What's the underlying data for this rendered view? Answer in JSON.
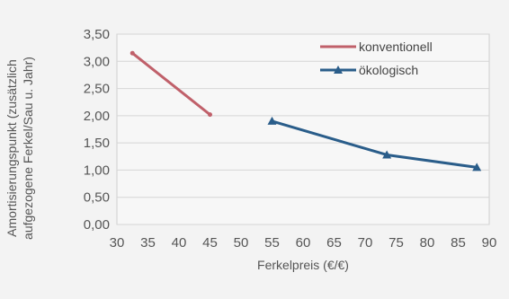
{
  "chart_data": {
    "type": "line",
    "xlabel": "Ferkelpreis (€/€)",
    "ylabel_line1": "Amortisierungspunkt (zusätzlich",
    "ylabel_line2": "aufgezogene Ferkel/Sau u. Jahr)",
    "xlim": [
      30,
      90
    ],
    "ylim": [
      0,
      3.5
    ],
    "x_ticks": [
      "30",
      "35",
      "40",
      "45",
      "50",
      "55",
      "60",
      "65",
      "70",
      "75",
      "80",
      "85",
      "90"
    ],
    "y_ticks": [
      "0,00",
      "0,50",
      "1,00",
      "1,50",
      "2,00",
      "2,50",
      "3,00",
      "3,50"
    ],
    "grid": true,
    "legend_position": "top-right",
    "series": [
      {
        "name": "konventionell",
        "color": "#c0606a",
        "marker": "none",
        "points": [
          [
            32.5,
            3.15
          ],
          [
            45,
            2.02
          ]
        ]
      },
      {
        "name": "ökologisch",
        "color": "#2a5d8a",
        "marker": "triangle",
        "points": [
          [
            55,
            1.9
          ],
          [
            73.5,
            1.28
          ],
          [
            88,
            1.05
          ]
        ]
      }
    ]
  }
}
